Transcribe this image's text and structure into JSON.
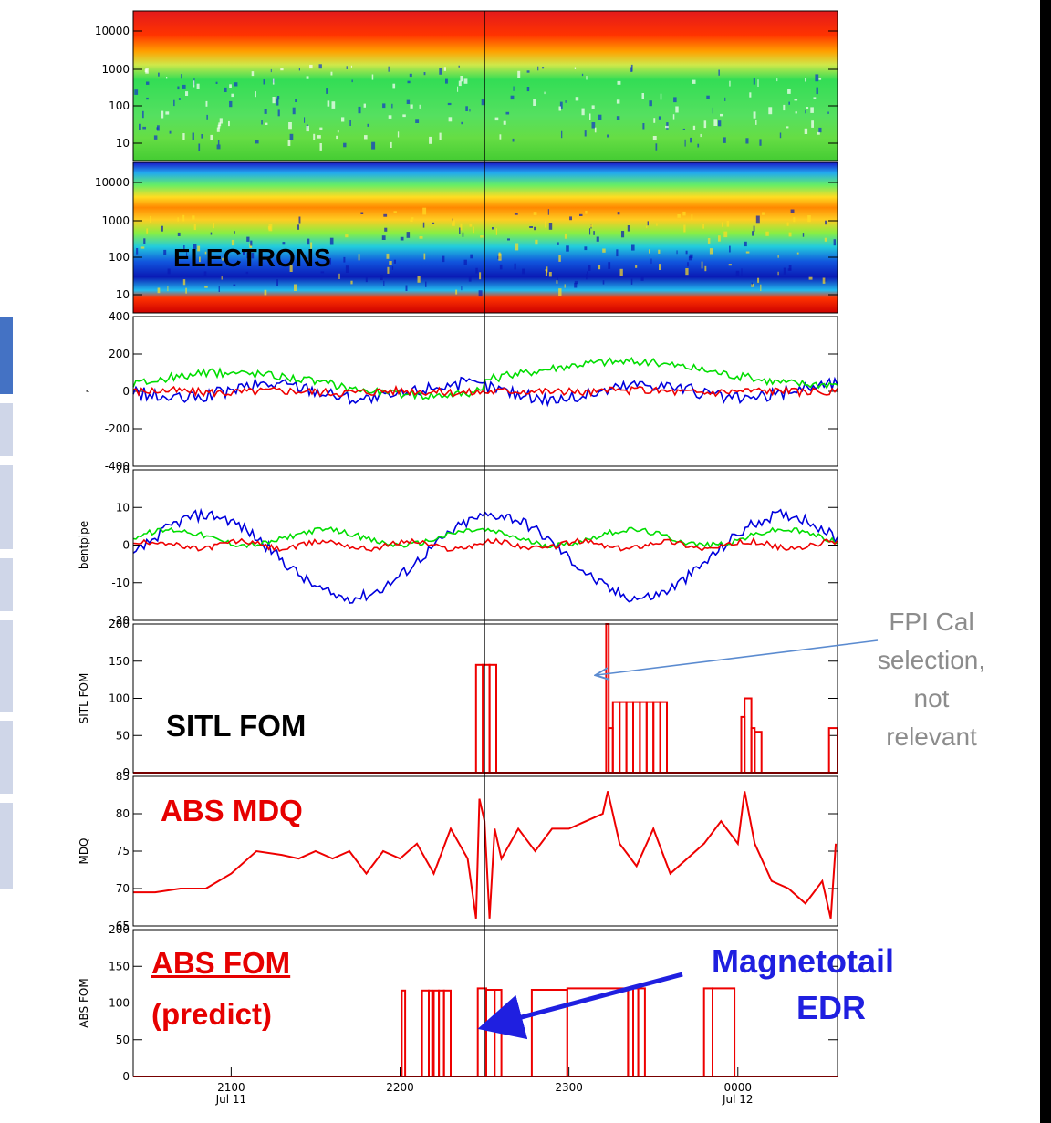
{
  "chart_data": [
    {
      "type": "heatmap",
      "panel": "ion-spectrogram",
      "yscale": "log",
      "yticks": [
        "10000",
        "1000",
        "100",
        "10"
      ]
    },
    {
      "type": "heatmap",
      "panel": "electron-spectrogram",
      "yscale": "log",
      "yticks": [
        "10000",
        "1000",
        "100",
        "10"
      ],
      "annotation": "ELECTRONS"
    },
    {
      "type": "line",
      "panel": "velocity",
      "ylim": [
        -400,
        400
      ],
      "yticks": [
        "400",
        "200",
        "0",
        "-200",
        "-400"
      ],
      "ylabel": ",",
      "series_colors": [
        "#0000dd",
        "#00dd00",
        "#ee0000"
      ]
    },
    {
      "type": "line",
      "panel": "bentpipe",
      "ylim": [
        -20,
        20
      ],
      "yticks": [
        "20",
        "10",
        "0",
        "-10",
        "-20"
      ],
      "ylabel": "bentpipe",
      "series_colors": [
        "#0000dd",
        "#00dd00",
        "#ee0000"
      ]
    },
    {
      "type": "bar",
      "panel": "sitl-fom",
      "ylim": [
        0,
        200
      ],
      "yticks": [
        "200",
        "150",
        "100",
        "50",
        "0"
      ],
      "ylabel": "SITL FOM",
      "annotation": "SITL FOM",
      "segments": [
        {
          "start": 2245,
          "end": 2249,
          "value": 145
        },
        {
          "start": 2249,
          "end": 2253,
          "value": 145
        },
        {
          "start": 2253,
          "end": 2257,
          "value": 145
        },
        {
          "start": 2322,
          "end": 2323.5,
          "value": 200
        },
        {
          "start": 2323.5,
          "end": 2326,
          "value": 60
        },
        {
          "start": 2326,
          "end": 2330,
          "value": 95
        },
        {
          "start": 2330,
          "end": 2334,
          "value": 95
        },
        {
          "start": 2334,
          "end": 2338,
          "value": 95
        },
        {
          "start": 2338,
          "end": 2342,
          "value": 95
        },
        {
          "start": 2342,
          "end": 2346,
          "value": 95
        },
        {
          "start": 2346,
          "end": 2350,
          "value": 95
        },
        {
          "start": 2350,
          "end": 2354,
          "value": 95
        },
        {
          "start": 2354,
          "end": 2358,
          "value": 95
        },
        {
          "start": 2402,
          "end": 2404,
          "value": 75
        },
        {
          "start": 2404,
          "end": 2408,
          "value": 100
        },
        {
          "start": 2408,
          "end": 2410,
          "value": 60
        },
        {
          "start": 2410,
          "end": 2414,
          "value": 55
        },
        {
          "start": 2454,
          "end": 2459,
          "value": 60
        }
      ]
    },
    {
      "type": "line",
      "panel": "abs-mdq",
      "ylim": [
        65,
        85
      ],
      "yticks": [
        "85",
        "80",
        "75",
        "70",
        "65"
      ],
      "ylabel": "MDQ",
      "annotation": "ABS MDQ",
      "x": [
        2042,
        2055,
        2070,
        2085,
        2100,
        2115,
        2130,
        2140,
        2150,
        2160,
        2170,
        2180,
        2190,
        2200,
        2210,
        2220,
        2230,
        2240,
        2245,
        2247,
        2250,
        2253,
        2256,
        2260,
        2270,
        2280,
        2290,
        2300,
        2310,
        2320,
        2323,
        2330,
        2340,
        2350,
        2360,
        2370,
        2380,
        2390,
        2400,
        2404,
        2410,
        2420,
        2430,
        2440,
        2450,
        2455,
        2458
      ],
      "values": [
        69.5,
        69.5,
        70,
        70,
        72,
        75,
        74.5,
        74,
        75,
        74,
        75,
        72,
        75,
        74,
        76,
        72,
        78,
        74,
        66,
        82,
        79,
        66,
        78,
        74,
        78,
        75,
        78,
        78,
        79,
        80,
        83,
        76,
        73,
        78,
        72,
        74,
        76,
        79,
        76,
        83,
        76,
        71,
        70,
        68,
        71,
        66,
        76
      ]
    },
    {
      "type": "bar",
      "panel": "abs-fom",
      "ylim": [
        0,
        200
      ],
      "yticks": [
        "200",
        "150",
        "100",
        "50",
        "0"
      ],
      "ylabel": "ABS FOM",
      "xticks": [
        {
          "x": 2100,
          "line1": "2100",
          "line2": "Jul 11"
        },
        {
          "x": 2200,
          "line1": "2200",
          "line2": ""
        },
        {
          "x": 2300,
          "line1": "2300",
          "line2": ""
        },
        {
          "x": 2400,
          "line1": "0000",
          "line2": "Jul 12"
        }
      ],
      "xlim": [
        2042,
        2459
      ],
      "event_line": 2250,
      "segments": [
        {
          "start": 2201,
          "end": 2203,
          "value": 117
        },
        {
          "start": 2213,
          "end": 2217,
          "value": 117
        },
        {
          "start": 2217,
          "end": 2219,
          "value": 117
        },
        {
          "start": 2220,
          "end": 2223,
          "value": 117
        },
        {
          "start": 2223,
          "end": 2226,
          "value": 117
        },
        {
          "start": 2226,
          "end": 2230,
          "value": 117
        },
        {
          "start": 2246,
          "end": 2251,
          "value": 120
        },
        {
          "start": 2251,
          "end": 2256,
          "value": 118
        },
        {
          "start": 2256,
          "end": 2260,
          "value": 118
        },
        {
          "start": 2278,
          "end": 2299,
          "value": 118
        },
        {
          "start": 2299,
          "end": 2335,
          "value": 120
        },
        {
          "start": 2335,
          "end": 2338,
          "value": 120
        },
        {
          "start": 2338,
          "end": 2341,
          "value": 120
        },
        {
          "start": 2341,
          "end": 2345,
          "value": 120
        },
        {
          "start": 2380,
          "end": 2385,
          "value": 120
        },
        {
          "start": 2385,
          "end": 2398,
          "value": 120
        }
      ]
    }
  ],
  "annotations": {
    "electrons": "ELECTRONS",
    "sitl_fom": "SITL FOM",
    "abs_mdq": "ABS MDQ",
    "abs_fom": "ABS FOM",
    "abs_fom_predict": "(predict)",
    "magnetotail": "Magnetotail",
    "edr": "EDR",
    "fpi_line1": "FPI Cal",
    "fpi_line2": "selection,",
    "fpi_line3": "not",
    "fpi_line4": "relevant"
  },
  "colors": {
    "red": "#ee0000",
    "blue": "#0000dd",
    "green": "#00dd00",
    "arrow_blue": "#1f1fe0",
    "callout_gray": "#8c8c8c",
    "callout_arrow": "#5b8bd0"
  }
}
